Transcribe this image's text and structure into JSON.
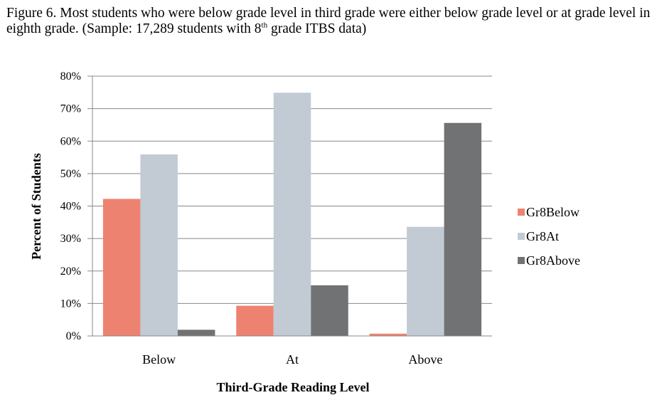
{
  "caption": {
    "part1": "Figure 6.  Most students who were below grade level in third grade were either below grade level or at grade level in  eighth grade.  (Sample:  17,289 students with 8",
    "sup": "th",
    "part2": " grade ITBS data)"
  },
  "colors": {
    "Gr8Below": "#ee8270",
    "Gr8At": "#c2cbd4",
    "Gr8Above": "#717273",
    "grid": "#888888"
  },
  "chart_data": {
    "type": "bar",
    "categories": [
      "Below",
      "At",
      "Above"
    ],
    "series": [
      {
        "name": "Gr8Below",
        "values": [
          42.2,
          9.3,
          0.7
        ]
      },
      {
        "name": "Gr8At",
        "values": [
          55.9,
          74.9,
          33.6
        ]
      },
      {
        "name": "Gr8Above",
        "values": [
          1.9,
          15.6,
          65.6
        ]
      }
    ],
    "title": "",
    "xlabel": "Third-Grade Reading Level",
    "ylabel": "Percent of Students",
    "ylim": [
      0,
      80
    ],
    "yticks": [
      "0%",
      "10%",
      "20%",
      "30%",
      "40%",
      "50%",
      "60%",
      "70%",
      "80%"
    ],
    "grid": true,
    "legend": "right"
  }
}
